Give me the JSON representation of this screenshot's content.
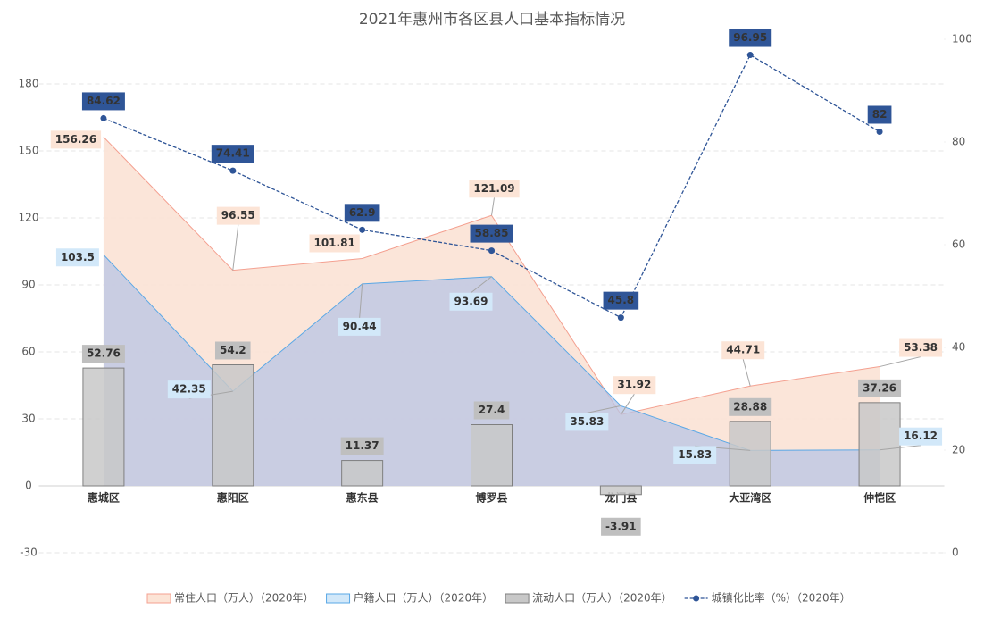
{
  "chart_data": {
    "type": "combo",
    "title": "2021年惠州市各区县人口基本指标情况",
    "categories": [
      "惠城区",
      "惠阳区",
      "惠东县",
      "博罗县",
      "龙门县",
      "大亚湾区",
      "仲恺区"
    ],
    "ylim": [
      -30,
      200
    ],
    "yticks": [
      -30,
      0,
      30,
      60,
      90,
      120,
      150,
      180
    ],
    "y2lim": [
      0,
      100
    ],
    "y2ticks": [
      0,
      20,
      40,
      60,
      80,
      100
    ],
    "grid": true,
    "legend": "bottom",
    "series": [
      {
        "name": "常住人口（万人）（2020年）",
        "type": "area",
        "color": "#f4a090",
        "values": [
          156.26,
          96.55,
          101.81,
          121.09,
          31.92,
          44.71,
          53.38
        ]
      },
      {
        "name": "户籍人口（万人）（2020年）",
        "type": "area",
        "color": "#5aa8e6",
        "values": [
          103.5,
          42.35,
          90.44,
          93.69,
          35.83,
          15.83,
          16.12
        ]
      },
      {
        "name": "流动人口（万人）（2020年）",
        "type": "bar",
        "color": "#a6a6a6",
        "values": [
          52.76,
          54.2,
          11.37,
          27.4,
          -3.91,
          28.88,
          37.26
        ]
      },
      {
        "name": "城镇化比率（%）（2020年）",
        "type": "line",
        "axis": "y2",
        "color": "#2f5597",
        "values": [
          84.62,
          74.41,
          62.9,
          58.85,
          45.8,
          96.95,
          82
        ]
      }
    ]
  }
}
